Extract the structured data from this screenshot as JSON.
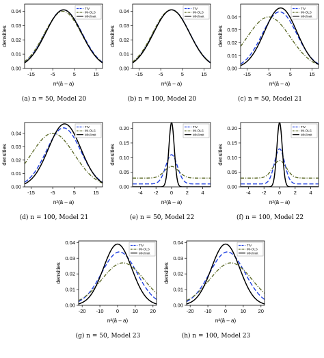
{
  "chart_data": [
    {
      "type": "line",
      "caption": "(a) n = 50, Model 20",
      "xlabel": "n²(â – a)",
      "ylabel": "densities",
      "xlim": [
        -18,
        18
      ],
      "ylim": [
        0,
        0.045
      ],
      "xticks": [
        -15,
        -5,
        5,
        15
      ],
      "yticks": [
        0.0,
        0.01,
        0.02,
        0.03,
        0.04
      ],
      "legend_position": "top-right",
      "series": [
        {
          "name": "TIV",
          "color": "#1f3fe0",
          "style": "dashed",
          "center": 0,
          "sd": 8.5,
          "peak": 0.041
        },
        {
          "name": "IM-OLS",
          "color": "#5e6b2a",
          "style": "dashdot",
          "center": -0.3,
          "sd": 8.6,
          "peak": 0.04
        },
        {
          "name": "MN limit",
          "color": "#000000",
          "style": "solid",
          "center": 0,
          "sd": 8.3,
          "peak": 0.041
        }
      ]
    },
    {
      "type": "line",
      "caption": "(b) n = 100, Model 20",
      "xlabel": "n²(â – a)",
      "ylabel": "densities",
      "xlim": [
        -18,
        18
      ],
      "ylim": [
        0,
        0.045
      ],
      "xticks": [
        -15,
        -5,
        5,
        15
      ],
      "yticks": [
        0.0,
        0.01,
        0.02,
        0.03,
        0.04
      ],
      "legend_position": "top-right",
      "series": [
        {
          "name": "TIV",
          "color": "#1f3fe0",
          "style": "dashed",
          "center": 0,
          "sd": 8.4,
          "peak": 0.041
        },
        {
          "name": "IM-OLS",
          "color": "#5e6b2a",
          "style": "dashdot",
          "center": -0.2,
          "sd": 8.5,
          "peak": 0.041
        },
        {
          "name": "MN limit",
          "color": "#000000",
          "style": "solid",
          "center": 0,
          "sd": 8.3,
          "peak": 0.041
        }
      ]
    },
    {
      "type": "line",
      "caption": "(c) n = 50, Model 21",
      "xlabel": "n²(â – a)",
      "ylabel": "densities",
      "xlim": [
        -18,
        18
      ],
      "ylim": [
        0,
        0.05
      ],
      "xticks": [
        -15,
        -5,
        5,
        15
      ],
      "yticks": [
        0.0,
        0.01,
        0.02,
        0.03,
        0.04
      ],
      "legend_position": "top-right",
      "series": [
        {
          "name": "TIV",
          "color": "#1f3fe0",
          "style": "dashed",
          "center": 0,
          "sd": 8.0,
          "peak": 0.044
        },
        {
          "name": "IM-OLS",
          "color": "#5e6b2a",
          "style": "dashdot",
          "center": -5,
          "sd": 10.0,
          "peak": 0.04
        },
        {
          "name": "MN limit",
          "color": "#000000",
          "style": "solid",
          "center": 0.5,
          "sd": 7.5,
          "peak": 0.047
        }
      ]
    },
    {
      "type": "line",
      "caption": "(d) n = 100, Model 21",
      "xlabel": "n²(â – a)",
      "ylabel": "densities",
      "xlim": [
        -18,
        18
      ],
      "ylim": [
        0,
        0.048
      ],
      "xticks": [
        -15,
        -5,
        5,
        15
      ],
      "yticks": [
        0.0,
        0.01,
        0.02,
        0.03,
        0.04
      ],
      "legend_position": "top-right",
      "series": [
        {
          "name": "TIV",
          "color": "#1f3fe0",
          "style": "dashed",
          "center": 0,
          "sd": 8.0,
          "peak": 0.044
        },
        {
          "name": "IM-OLS",
          "color": "#5e6b2a",
          "style": "dashdot",
          "center": -5,
          "sd": 10.0,
          "peak": 0.04
        },
        {
          "name": "MN limit",
          "color": "#000000",
          "style": "solid",
          "center": 0.5,
          "sd": 7.5,
          "peak": 0.047
        }
      ]
    },
    {
      "type": "line",
      "caption": "(e) n = 50, Model 22",
      "xlabel": "n²(â – a)",
      "ylabel": "densities",
      "xlim": [
        -5,
        5
      ],
      "ylim": [
        0,
        0.22
      ],
      "xticks": [
        -4,
        -2,
        0,
        2,
        4
      ],
      "yticks": [
        0.0,
        0.05,
        0.1,
        0.15,
        0.2
      ],
      "legend_position": "top-right",
      "series": [
        {
          "name": "TIV",
          "color": "#1f3fe0",
          "style": "dashed",
          "center": 0,
          "sd": 0.75,
          "peak": 0.11,
          "floor": 0.01
        },
        {
          "name": "IM-OLS",
          "color": "#5e6b2a",
          "style": "dashdot",
          "center": 0,
          "sd": 0.9,
          "peak": 0.07,
          "floor": 0.03
        },
        {
          "name": "MN limit",
          "color": "#000000",
          "style": "solid",
          "center": 0,
          "sd": 0.35,
          "peak": 0.22,
          "floor": 0.0
        }
      ]
    },
    {
      "type": "line",
      "caption": "(f) n = 100, Model 22",
      "xlabel": "n²(â – a)",
      "ylabel": "densities",
      "xlim": [
        -5,
        5
      ],
      "ylim": [
        0,
        0.22
      ],
      "xticks": [
        -4,
        -2,
        0,
        2,
        4
      ],
      "yticks": [
        0.0,
        0.05,
        0.1,
        0.15,
        0.2
      ],
      "legend_position": "top-right",
      "series": [
        {
          "name": "TIV",
          "color": "#1f3fe0",
          "style": "dashed",
          "center": 0,
          "sd": 0.65,
          "peak": 0.13,
          "floor": 0.01
        },
        {
          "name": "IM-OLS",
          "color": "#5e6b2a",
          "style": "dashdot",
          "center": 0,
          "sd": 0.85,
          "peak": 0.09,
          "floor": 0.03
        },
        {
          "name": "MN limit",
          "color": "#000000",
          "style": "solid",
          "center": 0,
          "sd": 0.35,
          "peak": 0.22,
          "floor": 0.0
        }
      ]
    },
    {
      "type": "line",
      "caption": "(g) n = 50, Model 23",
      "xlabel": "n²(â – a)",
      "ylabel": "densities",
      "xlim": [
        -22,
        22
      ],
      "ylim": [
        0,
        0.041
      ],
      "xticks": [
        -20,
        -10,
        0,
        10,
        20
      ],
      "yticks": [
        0.0,
        0.01,
        0.02,
        0.03,
        0.04
      ],
      "legend_position": "top-right",
      "series": [
        {
          "name": "TIV",
          "color": "#1f3fe0",
          "style": "dashed",
          "center": 1,
          "sd": 10,
          "peak": 0.034
        },
        {
          "name": "IM-OLS",
          "color": "#5e6b2a",
          "style": "dashdot",
          "center": 3,
          "sd": 12,
          "peak": 0.027
        },
        {
          "name": "MN limit",
          "color": "#000000",
          "style": "solid",
          "center": 0,
          "sd": 8,
          "peak": 0.039
        }
      ]
    },
    {
      "type": "line",
      "caption": "(h) n = 100, Model 23",
      "xlabel": "n²(â – a)",
      "ylabel": "densities",
      "xlim": [
        -22,
        22
      ],
      "ylim": [
        0,
        0.041
      ],
      "xticks": [
        -20,
        -10,
        0,
        10,
        20
      ],
      "yticks": [
        0.0,
        0.01,
        0.02,
        0.03,
        0.04
      ],
      "legend_position": "top-right",
      "series": [
        {
          "name": "TIV",
          "color": "#1f3fe0",
          "style": "dashed",
          "center": 1,
          "sd": 10,
          "peak": 0.034
        },
        {
          "name": "IM-OLS",
          "color": "#5e6b2a",
          "style": "dashdot",
          "center": 3,
          "sd": 12,
          "peak": 0.027
        },
        {
          "name": "MN limit",
          "color": "#000000",
          "style": "solid",
          "center": 0,
          "sd": 8,
          "peak": 0.039
        }
      ]
    }
  ]
}
